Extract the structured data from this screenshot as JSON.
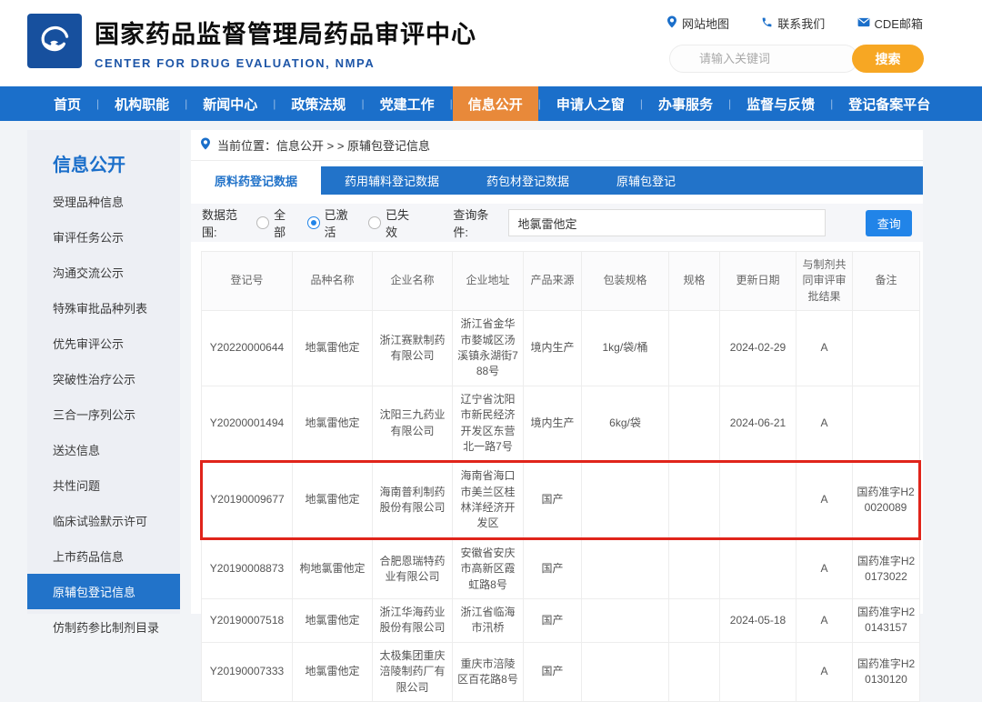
{
  "colors": {
    "nav_blue": "#1b6fca",
    "active_orange": "#e8893a",
    "search_orange": "#f7a723",
    "button_blue": "#2184e8",
    "highlight_red": "#e0241b",
    "logo_blue": "#17509e",
    "sidebar_active_blue": "#2273c9"
  },
  "header": {
    "title": "国家药品监督管理局药品审评中心",
    "subtitle": "CENTER FOR DRUG EVALUATION, NMPA",
    "links": [
      {
        "icon": "location-pin-icon",
        "label": "网站地图"
      },
      {
        "icon": "phone-icon",
        "label": "联系我们"
      },
      {
        "icon": "mail-icon",
        "label": "CDE邮箱"
      }
    ],
    "search": {
      "placeholder": "请输入关键词",
      "button_label": "搜索"
    }
  },
  "nav": {
    "items": [
      "首页",
      "机构职能",
      "新闻中心",
      "政策法规",
      "党建工作",
      "信息公开",
      "申请人之窗",
      "办事服务",
      "监督与反馈",
      "登记备案平台"
    ],
    "active_index": 5
  },
  "sidebar": {
    "title": "信息公开",
    "items": [
      "受理品种信息",
      "审评任务公示",
      "沟通交流公示",
      "特殊审批品种列表",
      "优先审评公示",
      "突破性治疗公示",
      "三合一序列公示",
      "送达信息",
      "共性问题",
      "临床试验默示许可",
      "上市药品信息",
      "原辅包登记信息",
      "仿制药参比制剂目录"
    ],
    "active_index": 11
  },
  "breadcrumb": {
    "text": "当前位置：信息公开 > > 原辅包登记信息"
  },
  "tabs": {
    "items": [
      "原料药登记数据",
      "药用辅料登记数据",
      "药包材登记数据",
      "原辅包登记"
    ],
    "active_index": 0
  },
  "filters": {
    "scope_label": "数据范围:",
    "options": [
      {
        "label": "全部",
        "selected": false
      },
      {
        "label": "已激活",
        "selected": true
      },
      {
        "label": "已失效",
        "selected": false
      }
    ],
    "query_label": "查询条件:",
    "query_value": "地氯雷他定",
    "search_button": "查询"
  },
  "table": {
    "columns": [
      "登记号",
      "品种名称",
      "企业名称",
      "企业地址",
      "产品来源",
      "包装规格",
      "规格",
      "更新日期",
      "与制剂共同审评审批结果",
      "备注"
    ],
    "highlighted_row_index": 2,
    "rows": [
      [
        "Y20220000644",
        "地氯雷他定",
        "浙江赛默制药有限公司",
        "浙江省金华市婺城区汤溪镇永湖街788号",
        "境内生产",
        "1kg/袋/桶",
        "",
        "2024-02-29",
        "A",
        ""
      ],
      [
        "Y20200001494",
        "地氯雷他定",
        "沈阳三九药业有限公司",
        "辽宁省沈阳市新民经济开发区东营北一路7号",
        "境内生产",
        "6kg/袋",
        "",
        "2024-06-21",
        "A",
        ""
      ],
      [
        "Y20190009677",
        "地氯雷他定",
        "海南普利制药股份有限公司",
        "海南省海口市美兰区桂林洋经济开发区",
        "国产",
        "",
        "",
        "",
        "A",
        "国药准字H20020089"
      ],
      [
        "Y20190008873",
        "枸地氯雷他定",
        "合肥恩瑞特药业有限公司",
        "安徽省安庆市高新区霞虹路8号",
        "国产",
        "",
        "",
        "",
        "A",
        "国药准字H20173022"
      ],
      [
        "Y20190007518",
        "地氯雷他定",
        "浙江华海药业股份有限公司",
        "浙江省临海市汛桥",
        "国产",
        "",
        "",
        "2024-05-18",
        "A",
        "国药准字H20143157"
      ],
      [
        "Y20190007333",
        "地氯雷他定",
        "太极集团重庆涪陵制药厂有限公司",
        "重庆市涪陵区百花路8号",
        "国产",
        "",
        "",
        "",
        "A",
        "国药准字H20130120"
      ]
    ]
  }
}
